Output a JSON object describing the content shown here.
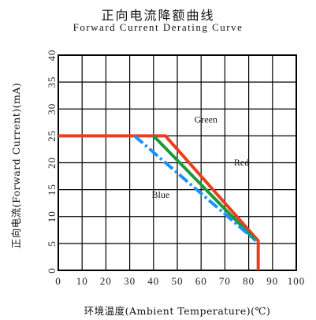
{
  "chart_data": {
    "type": "line",
    "title": "正向电流降额曲线",
    "subtitle": "Forward Current Derating Curve",
    "xlabel": "环境温度(Ambient Temperature)(℃)",
    "ylabel": "正向电流(Forward Current)(mA)",
    "xlim": [
      0,
      100
    ],
    "ylim": [
      0,
      40
    ],
    "xticks": [
      0,
      10,
      20,
      30,
      40,
      50,
      60,
      70,
      80,
      90,
      100
    ],
    "yticks": [
      0,
      5,
      10,
      15,
      20,
      25,
      30,
      35,
      40
    ],
    "grid": true,
    "series": [
      {
        "name": "Red",
        "color": "#e8401c",
        "style": "solid",
        "x": [
          0,
          45,
          84,
          84
        ],
        "y": [
          25,
          25,
          5.5,
          0
        ]
      },
      {
        "name": "Green",
        "color": "#1a9a3a",
        "style": "solid",
        "x": [
          40,
          83
        ],
        "y": [
          25,
          5.5
        ]
      },
      {
        "name": "Blue",
        "color": "#1e90ff",
        "style": "dash-dot",
        "x": [
          32,
          83
        ],
        "y": [
          25,
          5.5
        ]
      }
    ],
    "annotations": [
      {
        "text": "Green",
        "x": 62,
        "y": 27.5
      },
      {
        "text": "Red",
        "x": 77,
        "y": 19.5
      },
      {
        "text": "Blue",
        "x": 43,
        "y": 13.5
      }
    ]
  }
}
